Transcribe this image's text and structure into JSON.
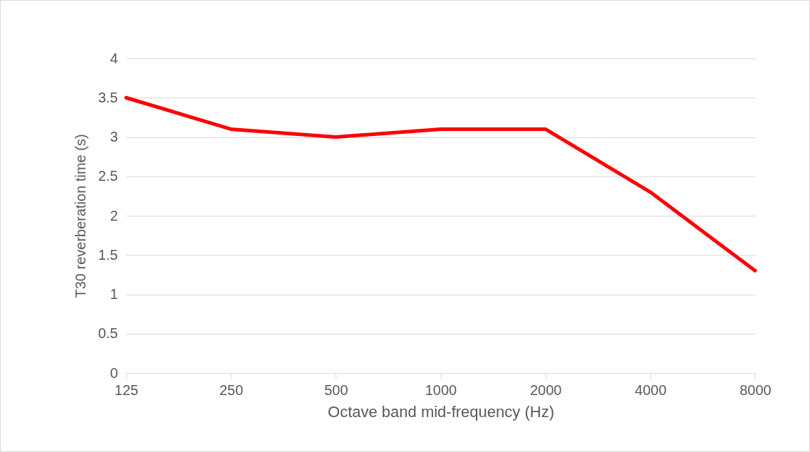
{
  "chart_data": {
    "type": "line",
    "xlabel": "Octave band mid-frequency (Hz)",
    "ylabel": "T30 reverberation time (s)",
    "categories": [
      "125",
      "250",
      "500",
      "1000",
      "2000",
      "4000",
      "8000"
    ],
    "series": [
      {
        "color": "#ff0000",
        "values": [
          3.5,
          3.1,
          3.0,
          3.1,
          3.1,
          2.3,
          1.3
        ]
      }
    ],
    "ylim": [
      0,
      4
    ],
    "yticks": [
      0,
      0.5,
      1,
      1.5,
      2,
      2.5,
      3,
      3.5,
      4
    ],
    "grid": "y",
    "marker": "none",
    "line_style": "solid"
  }
}
